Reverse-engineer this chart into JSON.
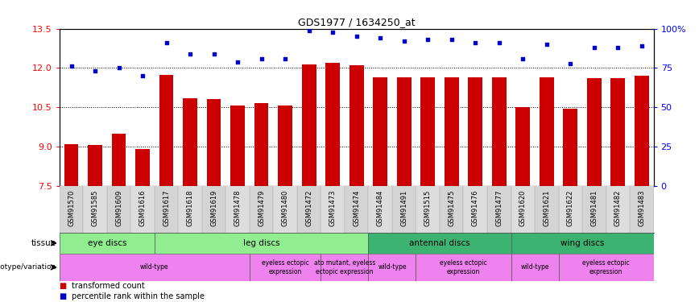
{
  "title": "GDS1977 / 1634250_at",
  "samples": [
    "GSM91570",
    "GSM91585",
    "GSM91609",
    "GSM91616",
    "GSM91617",
    "GSM91618",
    "GSM91619",
    "GSM91478",
    "GSM91479",
    "GSM91480",
    "GSM91472",
    "GSM91473",
    "GSM91474",
    "GSM91484",
    "GSM91491",
    "GSM91515",
    "GSM91475",
    "GSM91476",
    "GSM91477",
    "GSM91620",
    "GSM91621",
    "GSM91622",
    "GSM91481",
    "GSM91482",
    "GSM91483"
  ],
  "bar_values": [
    9.1,
    9.05,
    9.5,
    8.9,
    11.75,
    10.85,
    10.8,
    10.55,
    10.65,
    10.55,
    12.15,
    12.2,
    12.1,
    11.65,
    11.65,
    11.65,
    11.65,
    11.65,
    11.65,
    10.5,
    11.65,
    10.45,
    11.6,
    11.6,
    11.7
  ],
  "percentile_values": [
    76,
    73,
    75,
    70,
    91,
    84,
    84,
    79,
    81,
    81,
    99,
    98,
    95,
    94,
    92,
    93,
    93,
    91,
    91,
    81,
    90,
    78,
    88,
    88,
    89
  ],
  "ylim": [
    7.5,
    13.5
  ],
  "yticks": [
    7.5,
    9.0,
    10.5,
    12.0,
    13.5
  ],
  "right_ylim": [
    0,
    100
  ],
  "right_yticks": [
    0,
    25,
    50,
    75,
    100
  ],
  "bar_color": "#CC0000",
  "dot_color": "#0000CC",
  "bar_width": 0.6,
  "tissue_groups": [
    {
      "label": "eye discs",
      "start": 0,
      "end": 4,
      "color": "#90EE90"
    },
    {
      "label": "leg discs",
      "start": 4,
      "end": 13,
      "color": "#90EE90"
    },
    {
      "label": "antennal discs",
      "start": 13,
      "end": 19,
      "color": "#3CB371"
    },
    {
      "label": "wing discs",
      "start": 19,
      "end": 25,
      "color": "#3CB371"
    }
  ],
  "genotype_groups": [
    {
      "label": "wild-type",
      "start": 0,
      "end": 8,
      "color": "#EE82EE"
    },
    {
      "label": "eyeless ectopic\nexpression",
      "start": 8,
      "end": 11,
      "color": "#EE82EE"
    },
    {
      "label": "ato mutant, eyeless\nectopic expression",
      "start": 11,
      "end": 13,
      "color": "#EE82EE"
    },
    {
      "label": "wild-type",
      "start": 13,
      "end": 15,
      "color": "#EE82EE"
    },
    {
      "label": "eyeless ectopic\nexpression",
      "start": 15,
      "end": 19,
      "color": "#EE82EE"
    },
    {
      "label": "wild-type",
      "start": 19,
      "end": 21,
      "color": "#EE82EE"
    },
    {
      "label": "eyeless ectopic\nexpression",
      "start": 21,
      "end": 25,
      "color": "#EE82EE"
    }
  ],
  "bg_color": "#FFFFFF",
  "plot_bg": "#FFFFFF",
  "spine_color": "#000000",
  "grid_color": "#000000",
  "tick_label_fontsize": 8,
  "sample_fontsize": 6,
  "title_fontsize": 9
}
